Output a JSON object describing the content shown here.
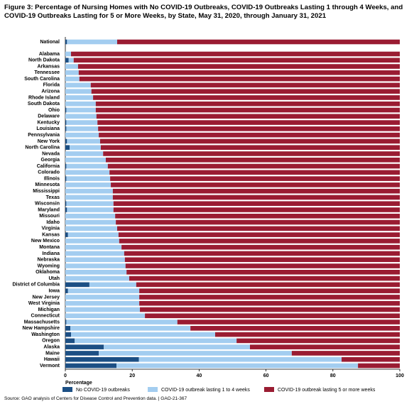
{
  "chart_data": {
    "type": "stacked-bar-horizontal",
    "title": "Figure 3: Percentage of Nursing Homes with No COVID-19 Outbreaks, COVID-19 Outbreaks Lasting 1 through 4 Weeks, and COVID-19 Outbreaks Lasting for 5 or More Weeks, by State, May 31, 2020, through January 31, 2021",
    "x_label": "Percentage",
    "source": "Source: GAO analysis of Centers for Disease Control and Prevention data.  |  GAO-21-367",
    "categories": [
      "National",
      "Alabama",
      "North Dakota",
      "Arkansas",
      "Tennessee",
      "South Carolina",
      "Florida",
      "Arizona",
      "Rhode Island",
      "South Dakota",
      "Ohio",
      "Delaware",
      "Kentucky",
      "Louisiana",
      "Pennsylvania",
      "New York",
      "North Carolina",
      "Nevada",
      "Georgia",
      "California",
      "Colorado",
      "Illinois",
      "Minnesota",
      "Mississippi",
      "Texas",
      "Wisconsin",
      "Maryland",
      "Missouri",
      "Idaho",
      "Virginia",
      "Kansas",
      "New Mexico",
      "Montana",
      "Indiana",
      "Nebraska",
      "Wyoming",
      "Oklahoma",
      "Utah",
      "District of Columbia",
      "Iowa",
      "New Jersey",
      "West Virginia",
      "Michigan",
      "Connecticut",
      "Massachusetts",
      "New Hampshire",
      "Washington",
      "Oregon",
      "Alaska",
      "Maine",
      "Hawaii",
      "Vermont"
    ],
    "series": [
      {
        "name": "No COVID-19 outbreaks",
        "color": "#1c4f84",
        "values": [
          0.5,
          0,
          1,
          0,
          0,
          0,
          0,
          0,
          0,
          0,
          0.3,
          0,
          0.3,
          0.3,
          0,
          0.5,
          1.3,
          0,
          0,
          0.3,
          0,
          0.3,
          0,
          0,
          0,
          0.3,
          0.5,
          0,
          0,
          0,
          0.8,
          0,
          0,
          0,
          0,
          0,
          0,
          0,
          7.2,
          0.8,
          0,
          0,
          0,
          0,
          0.3,
          1.5,
          1.7,
          2.8,
          11.5,
          10,
          22,
          15.3
        ]
      },
      {
        "name": "COVID-19 outbreak lasting 1 to 4 weeks",
        "color": "#a3cdf0",
        "values": [
          15,
          1.7,
          1.5,
          3.8,
          4,
          4.2,
          7.6,
          7.8,
          8.3,
          9.1,
          8.8,
          9.3,
          9.3,
          9.5,
          10,
          9.9,
          9.3,
          11.3,
          12.1,
          12.4,
          13.2,
          13.1,
          13.6,
          14.2,
          14.2,
          14.1,
          13.9,
          14.9,
          15.1,
          15.5,
          15.1,
          16.1,
          16.8,
          17.6,
          17.8,
          18,
          18.3,
          19.1,
          14,
          21.3,
          22.1,
          22.1,
          22.3,
          23.8,
          33.2,
          35.9,
          43.1,
          48.4,
          43.7,
          57.7,
          60.6,
          72.2
        ]
      },
      {
        "name": "COVID-19 outbreak lasting 5 or more weeks",
        "color": "#9a1c32",
        "values": [
          84.5,
          98.3,
          97.5,
          96.2,
          96,
          95.8,
          92.4,
          92.2,
          91.7,
          90.9,
          90.9,
          90.7,
          90.4,
          90.2,
          90,
          89.6,
          89.4,
          88.7,
          87.9,
          87.3,
          86.8,
          86.6,
          86.4,
          85.8,
          85.8,
          85.6,
          85.6,
          85.1,
          84.9,
          84.5,
          84.1,
          83.9,
          83.2,
          82.4,
          82.2,
          82,
          81.7,
          80.9,
          78.8,
          77.9,
          77.9,
          77.9,
          77.7,
          76.2,
          66.5,
          62.6,
          55.2,
          48.8,
          44.8,
          32.3,
          17.4,
          12.5
        ]
      }
    ],
    "xlim": [
      0,
      100
    ],
    "xticks": [
      0,
      20,
      40,
      60,
      80,
      100
    ]
  }
}
